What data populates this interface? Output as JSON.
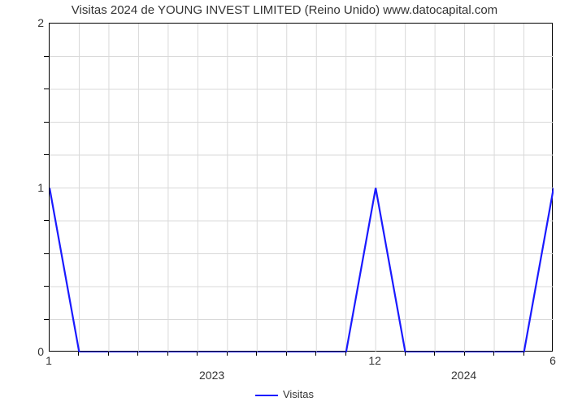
{
  "chart": {
    "type": "line",
    "title": "Visitas 2024 de YOUNG INVEST LIMITED (Reino Unido) www.datocapital.com",
    "title_fontsize": 15,
    "title_color": "#333333",
    "background_color": "#ffffff",
    "plot_border_color": "#000000",
    "grid_color": "#d9d9d9",
    "line_color": "#1a1aff",
    "line_width": 2.2,
    "yaxis": {
      "min": 0,
      "max": 2,
      "major_ticks": [
        0,
        1,
        2
      ],
      "minor_ticks": [
        0.2,
        0.4,
        0.6,
        0.8,
        1.2,
        1.4,
        1.6,
        1.8
      ],
      "tick_fontsize": 14
    },
    "xaxis": {
      "min": 1,
      "max": 18,
      "major_ticks": [
        {
          "pos": 1,
          "label": "1"
        },
        {
          "pos": 12,
          "label": "12"
        },
        {
          "pos": 18,
          "label": "6"
        }
      ],
      "minor_ticks": [
        2,
        3,
        4,
        5,
        6,
        7,
        8,
        9,
        10,
        11,
        13,
        14,
        15,
        16,
        17
      ],
      "year_labels": [
        {
          "pos": 6.5,
          "label": "2023"
        },
        {
          "pos": 15,
          "label": "2024"
        }
      ],
      "tick_fontsize": 14
    },
    "series": {
      "name": "Visitas",
      "x": [
        1,
        2,
        3,
        4,
        5,
        6,
        7,
        8,
        9,
        10,
        11,
        12,
        13,
        14,
        15,
        16,
        17,
        18
      ],
      "y": [
        1,
        0,
        0,
        0,
        0,
        0,
        0,
        0,
        0,
        0,
        0,
        1,
        0,
        0,
        0,
        0,
        0,
        1
      ]
    },
    "legend": {
      "label": "Visitas",
      "swatch_color": "#1a1aff",
      "fontsize": 13
    }
  }
}
